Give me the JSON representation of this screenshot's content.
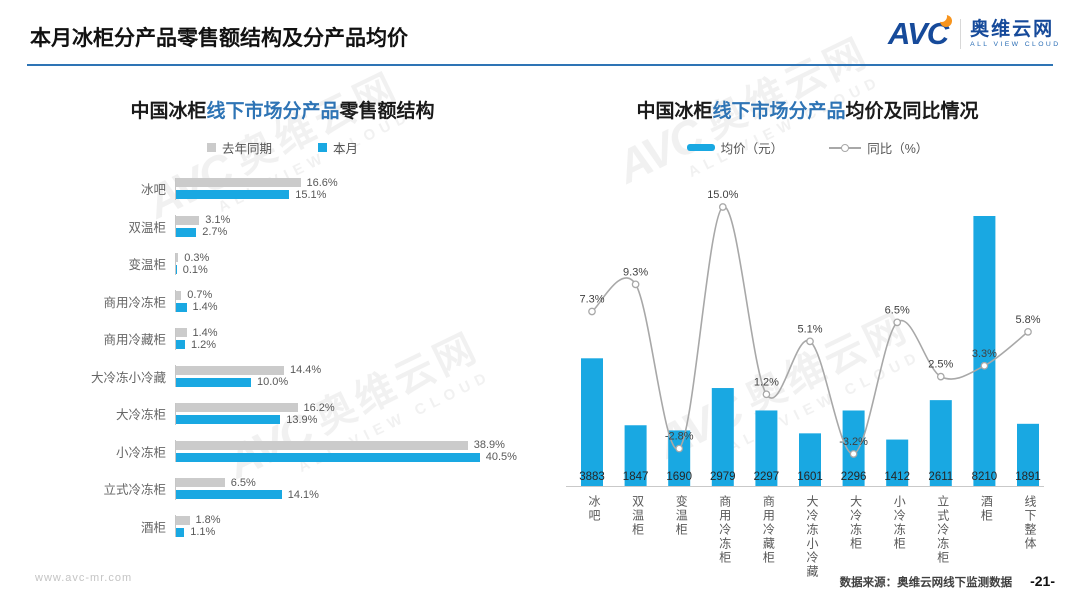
{
  "page": {
    "title": "本月冰柜分产品零售额结构及分产品均价",
    "logo": {
      "brand": "AVC",
      "name": "奥维云网",
      "tagline": "ALL VIEW CLOUD"
    },
    "watermark": {
      "brand": "AVC",
      "name": "奥维云网",
      "tagline": "ALL VIEW CLOUD"
    },
    "footer": {
      "website": "www.avc-mr.com",
      "source": "数据来源：奥维云网线下监测数据",
      "page_number": "-21-"
    },
    "colors": {
      "accent_blue": "#19a8e2",
      "bar_gray": "#cbcbcb",
      "line_gray": "#a8a8a8",
      "highlight_text": "#2e74b5",
      "header_rule": "#2e74b5"
    }
  },
  "chart_data": [
    {
      "type": "bar",
      "orientation": "horizontal",
      "title_parts": {
        "prefix": "中国冰柜",
        "highlight": "线下市场分产品",
        "suffix": "零售额结构"
      },
      "unit": "%",
      "xlim": [
        0,
        45
      ],
      "legend_position": "top",
      "grid": false,
      "categories": [
        "冰吧",
        "双温柜",
        "变温柜",
        "商用冷冻柜",
        "商用冷藏柜",
        "大冷冻小冷藏",
        "大冷冻柜",
        "小冷冻柜",
        "立式冷冻柜",
        "酒柜"
      ],
      "series": [
        {
          "name": "去年同期",
          "color": "#cbcbcb",
          "values": [
            16.6,
            3.1,
            0.3,
            0.7,
            1.4,
            14.4,
            16.2,
            38.9,
            6.5,
            1.8
          ]
        },
        {
          "name": "本月",
          "color": "#19a8e2",
          "values": [
            15.1,
            2.7,
            0.1,
            1.4,
            1.2,
            10.0,
            13.9,
            40.5,
            14.1,
            1.1
          ]
        }
      ]
    },
    {
      "type": "combo",
      "title_parts": {
        "prefix": "中国冰柜",
        "highlight": "线下市场分产品",
        "suffix": "均价及同比情况"
      },
      "legend_position": "top",
      "grid": false,
      "categories": [
        "冰吧",
        "双温柜",
        "变温柜",
        "商用冷冻柜",
        "商用冷藏柜",
        "大冷冻小冷藏",
        "大冷冻柜",
        "小冷冻柜",
        "立式冷冻柜",
        "酒柜",
        "线下整体"
      ],
      "series": [
        {
          "name": "均价（元）",
          "type": "bar",
          "unit": "元",
          "color": "#19a8e2",
          "values": [
            3883,
            1847,
            1690,
            2979,
            2297,
            1601,
            2296,
            1412,
            2611,
            8210,
            1891
          ]
        },
        {
          "name": "同比（%）",
          "type": "line",
          "unit": "%",
          "color": "#a8a8a8",
          "values": [
            7.3,
            9.3,
            -2.8,
            15.0,
            1.2,
            5.1,
            -3.2,
            6.5,
            2.5,
            3.3,
            5.8
          ]
        }
      ]
    }
  ]
}
